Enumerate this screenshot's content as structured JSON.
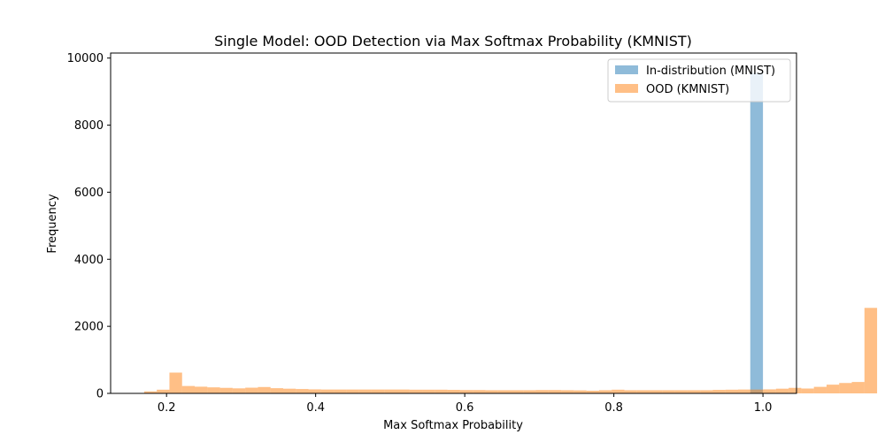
{
  "chart_data": {
    "type": "histogram",
    "title": "Single Model: OOD Detection via Max Softmax Probability (KMNIST)",
    "xlabel": "Max Softmax Probability",
    "ylabel": "Frequency",
    "xlim": [
      0.125,
      1.045
    ],
    "ylim": [
      0,
      10150
    ],
    "xticks": [
      0.2,
      0.4,
      0.6,
      0.8,
      1.0
    ],
    "xtick_labels": [
      "0.2",
      "0.4",
      "0.6",
      "0.8",
      "1.0"
    ],
    "yticks": [
      0,
      2000,
      4000,
      6000,
      8000,
      10000
    ],
    "ytick_labels": [
      "0",
      "2000",
      "4000",
      "6000",
      "8000",
      "10000"
    ],
    "grid": false,
    "legend_position": "top-right",
    "series": [
      {
        "name": "In-distribution (MNIST)",
        "color": "#1f77b4",
        "opacity": 0.5,
        "bins": [
          {
            "x0": 0.983,
            "x1": 1.0,
            "count": 9560
          }
        ]
      },
      {
        "name": "OOD (KMNIST)",
        "color": "#ff7f0e",
        "opacity": 0.5,
        "bin_start": 0.17,
        "bin_width": 0.01695,
        "counts": [
          60,
          110,
          620,
          220,
          200,
          180,
          165,
          150,
          170,
          190,
          155,
          140,
          130,
          120,
          115,
          115,
          115,
          115,
          115,
          115,
          115,
          110,
          110,
          110,
          105,
          100,
          100,
          95,
          95,
          95,
          95,
          100,
          100,
          95,
          90,
          80,
          95,
          110,
          95,
          95,
          95,
          95,
          95,
          95,
          95,
          105,
          110,
          115,
          115,
          120,
          140,
          165,
          145,
          195,
          260,
          310,
          340,
          2550
        ]
      }
    ]
  }
}
